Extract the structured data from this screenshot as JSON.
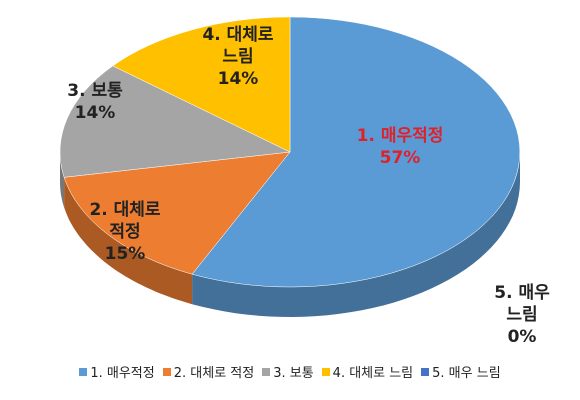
{
  "chart_data": {
    "type": "pie",
    "categories": [
      "1. 매우적정",
      "2. 대체로 적정",
      "3. 보통",
      "4. 대체로 느림",
      "5. 매우 느림"
    ],
    "values": [
      57,
      15,
      14,
      14,
      0
    ],
    "value_labels": [
      "57%",
      "15%",
      "14%",
      "14%",
      "0%"
    ],
    "colors": [
      "#5b9bd5",
      "#ed7d31",
      "#a5a5a5",
      "#ffc000",
      "#4472c4"
    ],
    "legend": "bottom"
  }
}
